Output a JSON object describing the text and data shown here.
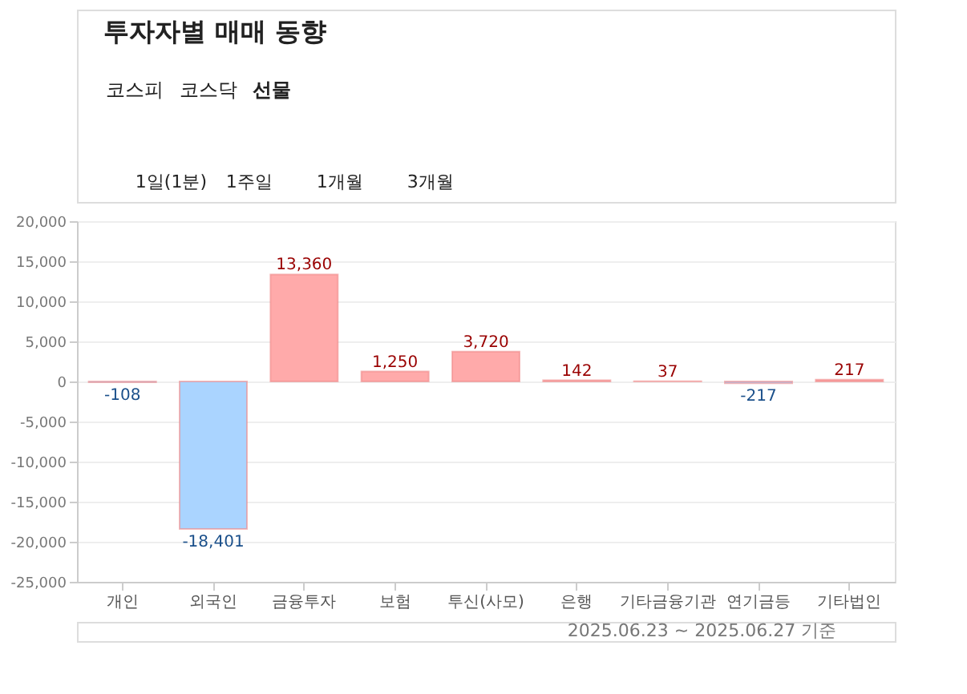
{
  "chart_data": {
    "type": "bar",
    "title": "투자자별 매매 동향",
    "categories": [
      "개인",
      "외국인",
      "금융투자",
      "보험",
      "투신(사모)",
      "은행",
      "기타금융기관",
      "연기금등",
      "기타법인"
    ],
    "values": [
      -108,
      -18401,
      13360,
      1250,
      3720,
      142,
      37,
      -217,
      217
    ],
    "value_labels": [
      "-108",
      "-18,401",
      "13,360",
      "1,250",
      "3,720",
      "142",
      "37",
      "-217",
      "217"
    ],
    "colors": [
      "#aad4ff",
      "#aad4ff",
      "#ffaaaa",
      "#ffaaaa",
      "#ffaaaa",
      "#ffaaaa",
      "#ffaaaa",
      "#aad4ff",
      "#ffaaaa"
    ],
    "ylim": [
      -25000,
      20000
    ],
    "yticks": [
      {
        "value": -25000,
        "label": "-25,000"
      },
      {
        "value": -20000,
        "label": "-20,000"
      },
      {
        "value": -15000,
        "label": "-15,000"
      },
      {
        "value": -10000,
        "label": "-10,000"
      },
      {
        "value": -5000,
        "label": "-5,000"
      },
      0,
      {
        "value": 5000,
        "label": "5,000"
      },
      {
        "value": 10000,
        "label": "10,000"
      },
      {
        "value": 15000,
        "label": "15,000"
      },
      {
        "value": 20000,
        "label": "20,000"
      }
    ],
    "grid": "y",
    "annotations": [
      "코스피",
      "코스닥",
      "선물",
      "1일(1분)",
      "1주일",
      "1개월",
      "3개월",
      "2025.06.23 ~ 2025.06.27 기준"
    ]
  }
}
